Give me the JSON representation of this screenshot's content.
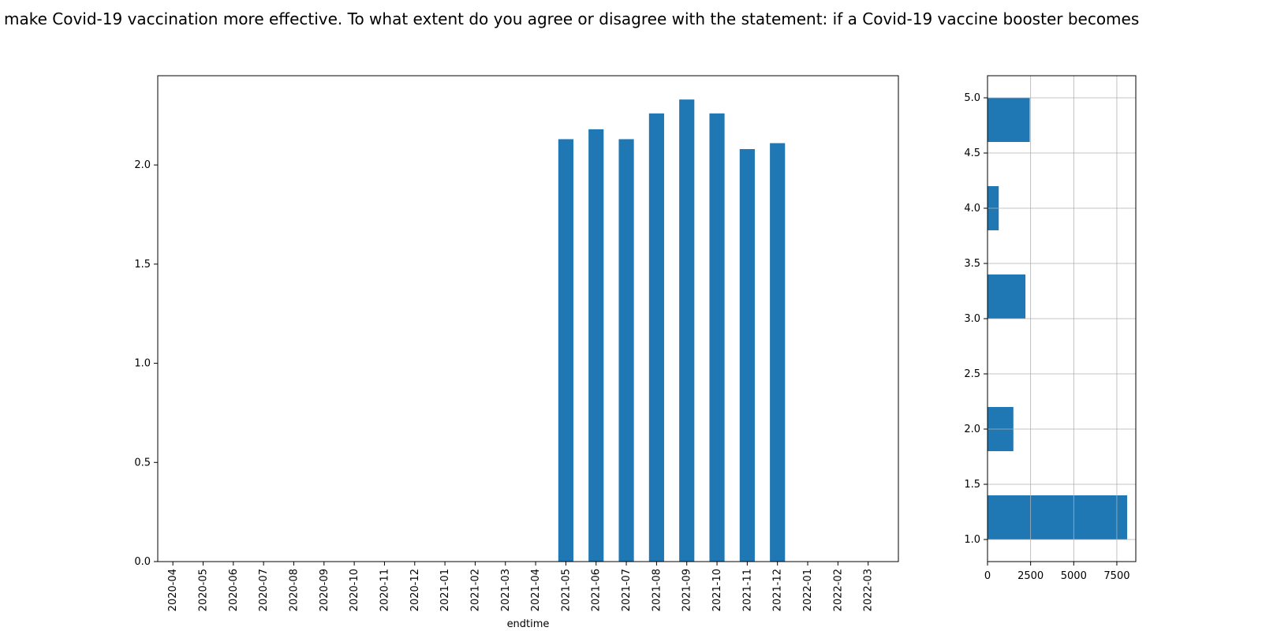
{
  "figure": {
    "title": "make Covid-19 vaccination more effective. To what extent do you agree or disagree with the statement: if a Covid-19 vaccine booster becomes"
  },
  "colors": {
    "bar": "#1f77b4",
    "grid": "#b0b0b0",
    "axis": "#000000"
  },
  "chart_data": [
    {
      "type": "bar",
      "title": "",
      "xlabel": "endtime",
      "ylabel": "",
      "grid": false,
      "ylim": [
        0,
        2.45
      ],
      "yticks": [
        "0.0",
        "0.5",
        "1.0",
        "1.5",
        "2.0"
      ],
      "categories": [
        "2020-04",
        "2020-05",
        "2020-06",
        "2020-07",
        "2020-08",
        "2020-09",
        "2020-10",
        "2020-11",
        "2020-12",
        "2021-01",
        "2021-02",
        "2021-03",
        "2021-04",
        "2021-05",
        "2021-06",
        "2021-07",
        "2021-08",
        "2021-09",
        "2021-10",
        "2021-11",
        "2021-12",
        "2022-01",
        "2022-02",
        "2022-03"
      ],
      "values": [
        null,
        null,
        null,
        null,
        null,
        null,
        null,
        null,
        null,
        null,
        null,
        null,
        null,
        2.13,
        2.18,
        2.13,
        2.26,
        2.33,
        2.26,
        2.08,
        2.11,
        null,
        null,
        null
      ]
    },
    {
      "type": "histogram",
      "orientation": "horizontal",
      "title": "",
      "grid": true,
      "xlim": [
        0,
        8600
      ],
      "ylim": [
        0.8,
        5.2
      ],
      "xticks": [
        "0",
        "2500",
        "5000",
        "7500"
      ],
      "yticks": [
        "1.0",
        "1.5",
        "2.0",
        "2.5",
        "3.0",
        "3.5",
        "4.0",
        "4.5",
        "5.0"
      ],
      "bins": [
        {
          "range": [
            1.0,
            1.4
          ],
          "count": 8100
        },
        {
          "range": [
            1.8,
            2.2
          ],
          "count": 1500
        },
        {
          "range": [
            3.0,
            3.4
          ],
          "count": 2200
        },
        {
          "range": [
            3.8,
            4.2
          ],
          "count": 650
        },
        {
          "range": [
            4.6,
            5.0
          ],
          "count": 2450
        }
      ]
    }
  ]
}
